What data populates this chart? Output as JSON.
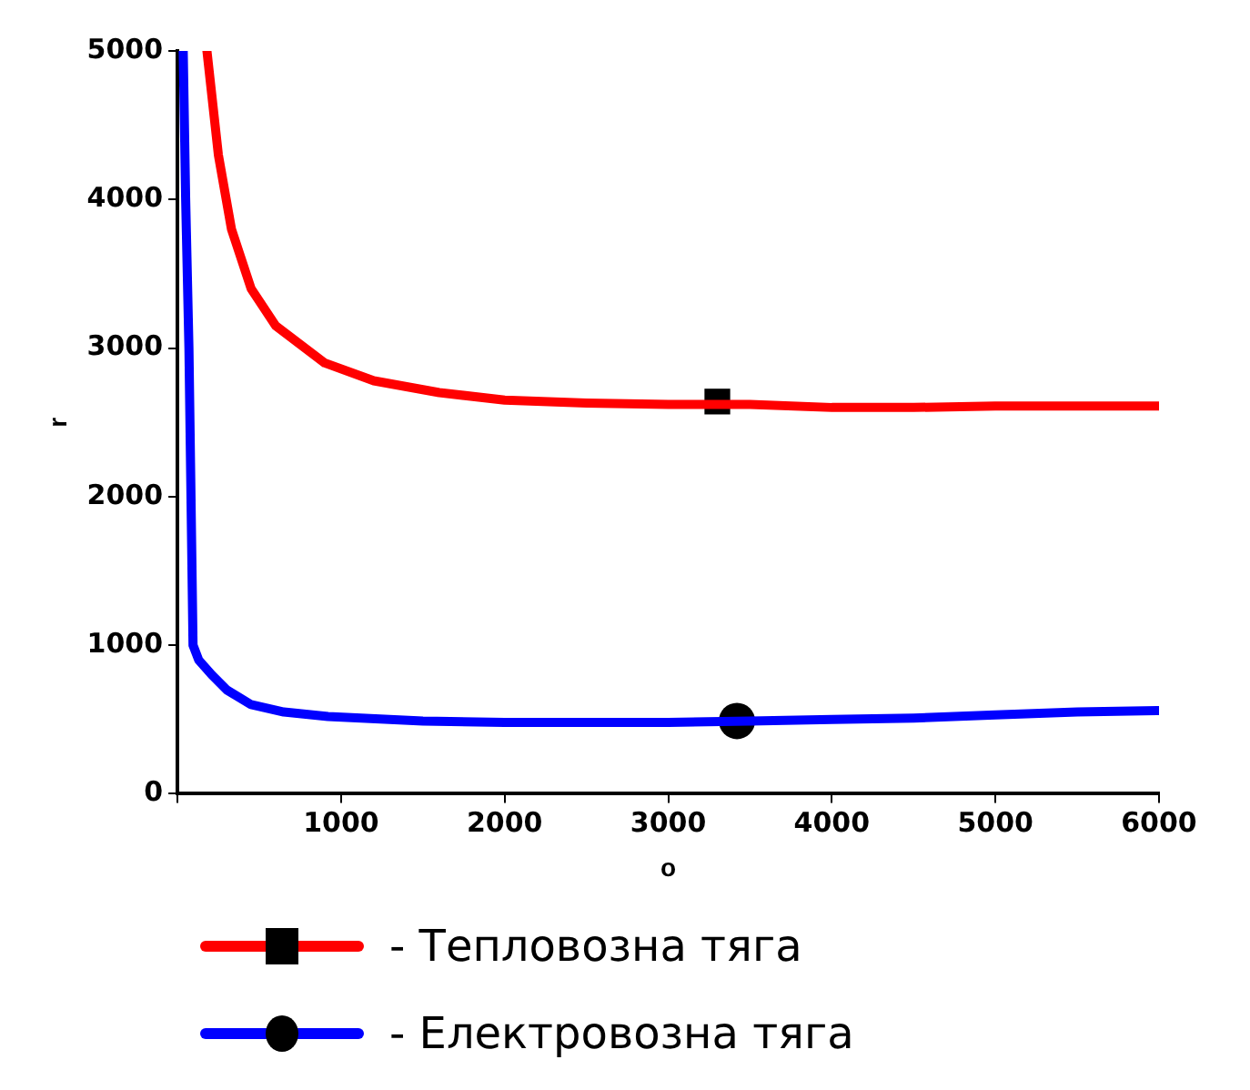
{
  "chart_data": {
    "type": "line",
    "xlabel": "o",
    "ylabel": "r",
    "xlim": [
      0,
      6000
    ],
    "ylim": [
      0,
      5000
    ],
    "xticks": [
      {
        "value": 0,
        "label": null
      },
      1000,
      2000,
      3000,
      4000,
      5000,
      6000
    ],
    "yticks": [
      0,
      1000,
      2000,
      3000,
      4000,
      5000
    ],
    "grid": false,
    "legend": "bottom",
    "line_style": "solid",
    "series": [
      {
        "name": "- Тепловозна тяга",
        "color": "#ff0000",
        "marker": "none",
        "x": [
          180,
          250,
          330,
          450,
          600,
          900,
          1200,
          1600,
          2000,
          2500,
          3000,
          3500,
          4000,
          4500,
          5000,
          5500,
          6000
        ],
        "values": [
          5000,
          4300,
          3800,
          3400,
          3150,
          2900,
          2780,
          2700,
          2650,
          2630,
          2620,
          2620,
          2600,
          2600,
          2610,
          2610,
          2610
        ]
      },
      {
        "type": "scatter",
        "color": "#000000",
        "marker": "square",
        "x": [
          3300
        ],
        "values": [
          2640
        ]
      },
      {
        "name": "- Електровозна тяга",
        "color": "#0000ff",
        "marker": "none",
        "x": [
          35,
          50,
          70,
          95,
          130,
          210,
          300,
          450,
          650,
          920,
          1500,
          2000,
          2500,
          3000,
          3500,
          4000,
          4500,
          5000,
          5500,
          6000
        ],
        "values": [
          5000,
          4000,
          3000,
          1000,
          900,
          800,
          700,
          600,
          550,
          520,
          490,
          480,
          480,
          480,
          490,
          500,
          510,
          530,
          550,
          560
        ]
      },
      {
        "type": "scatter",
        "color": "#000000",
        "marker": "circle",
        "x": [
          3420
        ],
        "values": [
          490
        ]
      }
    ]
  }
}
